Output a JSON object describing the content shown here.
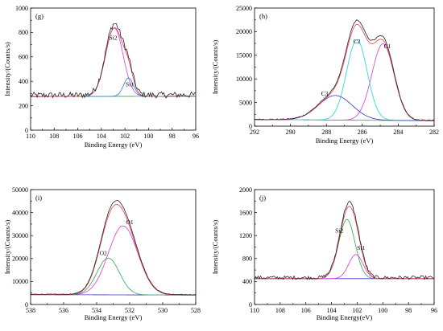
{
  "chart_data": [
    {
      "panel": "(g)",
      "type": "line",
      "xlabel": "Binding Energy (eV)",
      "ylabel": "Intensity/(Counts/s)",
      "xlim": [
        110,
        96
      ],
      "ylim": [
        0,
        1000
      ],
      "x_reversed": true,
      "xticks": [
        "110",
        "108",
        "106",
        "104",
        "102",
        "100",
        "98",
        "96"
      ],
      "yticks": [
        "0",
        "200",
        "400",
        "600",
        "800",
        "1000"
      ],
      "baseline": [
        [
          110,
          275
        ],
        [
          96,
          278
        ]
      ],
      "colors": {
        "raw": "#222222",
        "envelope": "#e8424f",
        "baseline": "#2fa84f",
        "Si1": "#1f7fe0",
        "Si2": "#e038d8"
      },
      "peaks": [
        {
          "name": "Si2",
          "center": 102.9,
          "height": 560,
          "fwhm": 1.75,
          "color": "#e038d8"
        },
        {
          "name": "Si1",
          "center": 101.7,
          "height": 150,
          "fwhm": 1.0,
          "color": "#1f7fe0"
        }
      ],
      "raw_noise": 25,
      "labels": [
        {
          "text": "Si2",
          "x": 103.0,
          "y": 740
        },
        {
          "text": "Si1",
          "x": 101.6,
          "y": 360
        }
      ]
    },
    {
      "panel": "(h)",
      "type": "line",
      "xlabel": "Binding Energy (eV)",
      "ylabel": "Intensity/(Counts/s)",
      "xlim": [
        292,
        282
      ],
      "ylim": [
        0,
        25000
      ],
      "x_reversed": true,
      "xticks": [
        "292",
        "290",
        "288",
        "286",
        "284",
        "282"
      ],
      "yticks": [
        "0",
        "5000",
        "10000",
        "15000",
        "20000",
        "25000"
      ],
      "baseline": [
        [
          292,
          1400
        ],
        [
          282,
          1150
        ]
      ],
      "colors": {
        "raw": "#222222",
        "envelope": "#e8424f",
        "baseline": "#2fa84f",
        "C1": "#e038d8",
        "C2": "#19d8d8",
        "C3": "#3b34c8"
      },
      "peaks": [
        {
          "name": "C1",
          "center": 284.85,
          "height": 16200,
          "fwhm": 1.45,
          "color": "#e038d8"
        },
        {
          "name": "C2",
          "center": 286.3,
          "height": 17000,
          "fwhm": 1.35,
          "color": "#19d8d8"
        },
        {
          "name": "C3",
          "center": 287.5,
          "height": 5200,
          "fwhm": 2.2,
          "color": "#3b34c8"
        }
      ],
      "raw_noise": 120,
      "labels": [
        {
          "text": "C1",
          "x": 284.6,
          "y": 16500
        },
        {
          "text": "C2",
          "x": 286.3,
          "y": 17500
        },
        {
          "text": "C3",
          "x": 288.1,
          "y": 6500
        }
      ]
    },
    {
      "panel": "(i)",
      "type": "line",
      "xlabel": "Binding Energy (eV)",
      "ylabel": "Intensity/(Counts/s)",
      "xlim": [
        538,
        528
      ],
      "ylim": [
        0,
        50000
      ],
      "x_reversed": true,
      "xticks": [
        "538",
        "536",
        "534",
        "532",
        "530",
        "528"
      ],
      "yticks": [
        "0",
        "10000",
        "20000",
        "30000",
        "40000",
        "50000"
      ],
      "baseline": [
        [
          538,
          4300
        ],
        [
          528,
          4100
        ]
      ],
      "colors": {
        "raw": "#222222",
        "envelope": "#e8424f",
        "baseline": "#3b34c8",
        "O1": "#e038d8",
        "O2": "#2fa84f"
      },
      "peaks": [
        {
          "name": "O1",
          "center": 532.4,
          "height": 30000,
          "fwhm": 2.1,
          "color": "#e038d8"
        },
        {
          "name": "O2",
          "center": 533.3,
          "height": 16000,
          "fwhm": 1.6,
          "color": "#2fa84f"
        }
      ],
      "raw_noise": 150,
      "labels": [
        {
          "text": "O1",
          "x": 532.0,
          "y": 35000
        },
        {
          "text": "O2",
          "x": 533.6,
          "y": 21500
        }
      ]
    },
    {
      "panel": "(j)",
      "type": "line",
      "xlabel": "Binding Energy(eV)",
      "ylabel": "Intensity/(Counts/s)",
      "xlim": [
        110,
        96
      ],
      "ylim": [
        0,
        2000
      ],
      "x_reversed": true,
      "xticks": [
        "110",
        "108",
        "106",
        "104",
        "102",
        "100",
        "98",
        "96"
      ],
      "yticks": [
        "0",
        "400",
        "800",
        "1200",
        "1600",
        "2000"
      ],
      "baseline": [
        [
          110,
          450
        ],
        [
          96,
          450
        ]
      ],
      "colors": {
        "raw": "#222222",
        "envelope": "#e8424f",
        "baseline": "#3b34c8",
        "Si1": "#e038d8",
        "Si2": "#2fa84f"
      },
      "peaks": [
        {
          "name": "Si2",
          "center": 102.8,
          "height": 1030,
          "fwhm": 1.5,
          "color": "#2fa84f"
        },
        {
          "name": "Si1",
          "center": 102.1,
          "height": 420,
          "fwhm": 1.3,
          "color": "#e038d8"
        }
      ],
      "raw_noise": 30,
      "labels": [
        {
          "text": "Si2",
          "x": 103.4,
          "y": 1250
        },
        {
          "text": "Si1",
          "x": 101.7,
          "y": 950
        }
      ]
    }
  ]
}
